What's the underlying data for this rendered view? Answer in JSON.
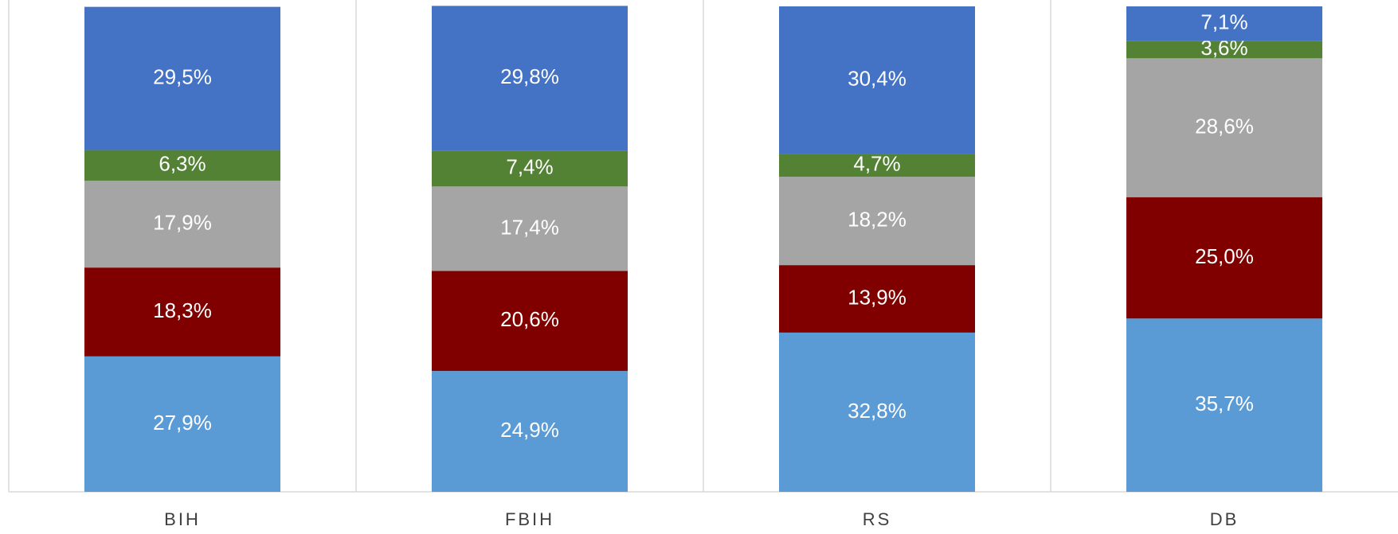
{
  "chart_data": {
    "type": "stacked_bar",
    "categories": [
      "BIH",
      "FBIH",
      "RS",
      "DB"
    ],
    "ylim": [
      0,
      100
    ],
    "series": [
      {
        "color": "#5b9bd5",
        "values": [
          27.9,
          24.9,
          32.8,
          35.7
        ],
        "value_labels": [
          "27,9%",
          "24,9%",
          "32,8%",
          "35,7%"
        ]
      },
      {
        "color": "#800000",
        "values": [
          18.3,
          20.6,
          13.9,
          25.0
        ],
        "value_labels": [
          "18,3%",
          "20,6%",
          "13,9%",
          "25,0%"
        ]
      },
      {
        "color": "#a5a5a5",
        "values": [
          17.9,
          17.4,
          18.2,
          28.6
        ],
        "value_labels": [
          "17,9%",
          "17,4%",
          "18,2%",
          "28,6%"
        ]
      },
      {
        "color": "#548235",
        "values": [
          6.3,
          7.4,
          4.7,
          3.6
        ],
        "value_labels": [
          "6,3%",
          "7,4%",
          "4,7%",
          "3,6%"
        ]
      },
      {
        "color": "#4472c4",
        "values": [
          29.5,
          29.8,
          30.4,
          7.1
        ],
        "value_labels": [
          "29,5%",
          "29,8%",
          "30,4%",
          "7,1%"
        ]
      }
    ]
  }
}
